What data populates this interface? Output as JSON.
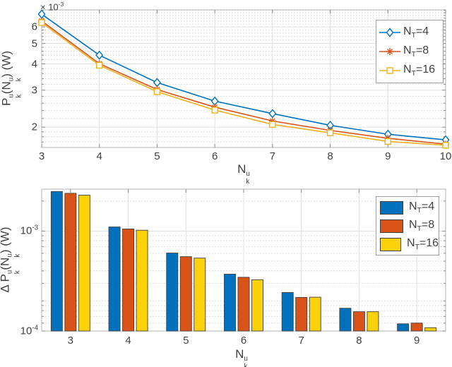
{
  "colors": {
    "series_blue": "#0072BD",
    "series_red": "#D95319",
    "series_yellow": "#EDB120",
    "bar_yellow": "#FBD20A",
    "bar_edge": "#3f3f3f",
    "axis_border": "#b3b3b3",
    "grid_major": "#e0e0e0",
    "grid_minor": "#d4d4d4",
    "tick_mark": "#8a8a8a",
    "text": "#3f3f3f",
    "legend_border": "#9e9e9e",
    "background": "#ffffff"
  },
  "chart_data": [
    {
      "type": "line",
      "yscale": "log",
      "xlim": [
        3,
        10
      ],
      "ylim": [
        0.0016,
        0.00723
      ],
      "x": [
        3,
        4,
        5,
        6,
        7,
        8,
        9,
        10
      ],
      "xtick_labels": [
        "3",
        "4",
        "5",
        "6",
        "7",
        "8",
        "9",
        "10"
      ],
      "ytick_values": [
        0.002,
        0.003,
        0.004,
        0.005,
        0.006
      ],
      "ytick_labels": [
        "2",
        "3",
        "4",
        "5",
        "6"
      ],
      "y_minor_values": [
        0.0017,
        0.0018,
        0.0019,
        0.0022,
        0.0024,
        0.0026,
        0.0028,
        0.0032,
        0.0034,
        0.0036,
        0.0038,
        0.0042,
        0.0044,
        0.0046,
        0.0048,
        0.0052,
        0.0054,
        0.0056,
        0.0058,
        0.0062,
        0.0064,
        0.0066,
        0.0068,
        0.007,
        0.0072
      ],
      "exponent_runs": [
        {
          "t": "× 10"
        },
        {
          "sup": "-3"
        }
      ],
      "xlabel_runs": [
        {
          "t": "N"
        },
        {
          "stack": [
            "u",
            "k"
          ]
        }
      ],
      "ylabel_runs": [
        {
          "t": "P"
        },
        {
          "stack": [
            "u",
            "k"
          ]
        },
        {
          "t": "(N"
        },
        {
          "stack": [
            "u",
            "k"
          ]
        },
        {
          "t": ") (W)"
        }
      ],
      "legend_position": "northeast",
      "series": [
        {
          "id": "nt4",
          "name_runs": [
            {
              "t": "N"
            },
            {
              "sub": "T"
            },
            {
              "t": "=4"
            }
          ],
          "marker": "diamond",
          "color_key": "series_blue",
          "values": [
            0.0069,
            0.0044,
            0.00326,
            0.00266,
            0.00232,
            0.00204,
            0.00185,
            0.00174
          ]
        },
        {
          "id": "nt8",
          "name_runs": [
            {
              "t": "N"
            },
            {
              "sub": "T"
            },
            {
              "t": "=8"
            }
          ],
          "marker": "asterisk",
          "color_key": "series_red",
          "values": [
            0.0064,
            0.00401,
            0.00302,
            0.00249,
            0.00214,
            0.00193,
            0.00177,
            0.00166
          ]
        },
        {
          "id": "nt16",
          "name_runs": [
            {
              "t": "N"
            },
            {
              "sub": "T"
            },
            {
              "t": "=16"
            }
          ],
          "marker": "square",
          "color_key": "series_yellow",
          "values": [
            0.00629,
            0.00394,
            0.00295,
            0.00241,
            0.00206,
            0.00188,
            0.00171,
            0.00164
          ]
        }
      ]
    },
    {
      "type": "bar",
      "yscale": "log",
      "ylim": [
        0.0001,
        0.00263
      ],
      "categories": [
        "3",
        "4",
        "5",
        "6",
        "7",
        "8",
        "9"
      ],
      "ytick_values": [
        0.001,
        0.0001
      ],
      "ytick_label_runs": [
        [
          {
            "t": "10"
          },
          {
            "sup": "-3"
          }
        ],
        [
          {
            "t": "10"
          },
          {
            "sup": "-4"
          }
        ]
      ],
      "y_minor_values": [
        0.00012,
        0.00014,
        0.00016,
        0.00018,
        0.0002,
        0.0003,
        0.0004,
        0.0005,
        0.0006,
        0.0007,
        0.0008,
        0.0009,
        0.002
      ],
      "xlabel_runs": [
        {
          "t": "N"
        },
        {
          "stack": [
            "u",
            "k"
          ]
        }
      ],
      "ylabel_runs": [
        {
          "t": "Δ P"
        },
        {
          "stack": [
            "u",
            "k"
          ]
        },
        {
          "t": "(N"
        },
        {
          "stack": [
            "u",
            "k"
          ]
        },
        {
          "t": ") (W)"
        }
      ],
      "legend_position": "northeast",
      "series": [
        {
          "id": "nt4",
          "name_runs": [
            {
              "t": "N"
            },
            {
              "sub": "T"
            },
            {
              "t": "=4"
            }
          ],
          "color_key": "series_blue",
          "values": [
            0.00249,
            0.0011,
            0.000603,
            0.000371,
            0.000243,
            0.000169,
            0.000118
          ]
        },
        {
          "id": "nt8",
          "name_runs": [
            {
              "t": "N"
            },
            {
              "sub": "T"
            },
            {
              "t": "=8"
            }
          ],
          "color_key": "series_red",
          "values": [
            0.00239,
            0.00105,
            0.000555,
            0.000345,
            0.000217,
            0.000156,
            0.00012
          ]
        },
        {
          "id": "nt16",
          "name_runs": [
            {
              "t": "N"
            },
            {
              "sub": "T"
            },
            {
              "t": "=16"
            }
          ],
          "color_key": "bar_yellow",
          "values": [
            0.00229,
            0.00102,
            0.000537,
            0.000326,
            0.000218,
            0.000156,
            0.000108
          ]
        }
      ]
    }
  ]
}
